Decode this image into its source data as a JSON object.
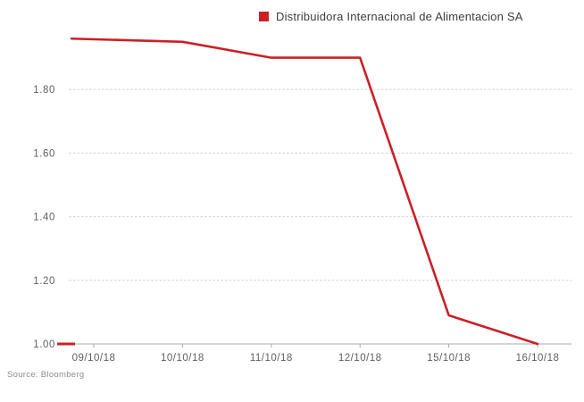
{
  "chart_data": {
    "type": "line",
    "title": "",
    "legend": "Distribuidora Internacional de Alimentacion SA",
    "source": "Source: Bloomberg",
    "categories": [
      "09/10/18",
      "10/10/18",
      "11/10/18",
      "12/10/18",
      "15/10/18",
      "16/10/18"
    ],
    "series": [
      {
        "name": "Distribuidora Internacional de Alimentacion SA",
        "values": [
          1.96,
          1.95,
          1.9,
          1.9,
          1.09,
          1.0
        ]
      }
    ],
    "xlabel": "",
    "ylabel": "",
    "ylim": [
      1.0,
      2.0
    ],
    "yticks": [
      1.0,
      1.2,
      1.4,
      1.6,
      1.8
    ],
    "ytick_labels": [
      "1.00",
      "1.20",
      "1.40",
      "1.60",
      "1.80"
    ],
    "grid": "dotted-horizontal",
    "legend_position": "top-center",
    "colors": {
      "line": "#cb2026",
      "grid": "#d8d8d8",
      "axis": "#a8a8a8",
      "tick_text": "#5f5f5f",
      "legend_text": "#3d3d3d",
      "source_text": "#8c8c8c",
      "background": "#ffffff"
    }
  }
}
